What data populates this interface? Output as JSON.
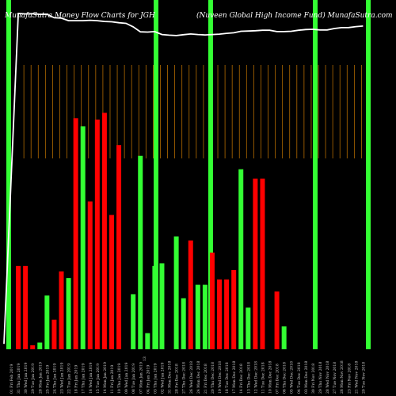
{
  "chart_data": {
    "type": "bar",
    "title": "MunafaSutra  Money Flow  Charts for JGH",
    "subtitle": "(Nuveen  Global High Income   Fund) MunafaSutra.com",
    "categories": [
      "01 Fri Feb 2019",
      "31 Thu Jan 2019",
      "30 Wed Jan 2019",
      "29 Tue Jan 2019",
      "28 Mon Jan 2019",
      "25 Fri Jan 2019",
      "24 Thu Jan 2019",
      "23 Wed Jan 2019",
      "22 Tue Jan 2019",
      "18 Fri Jan 2019",
      "17 Thu Jan 2019",
      "16 Wed Jan 2019",
      "15 Tue Jan 2019",
      "14 Mon Jan 2019",
      "11 Fri Jan 2019",
      "10 Thu Jan 2019",
      "09 Wed Jan 2019",
      "08 Tue Jan 2019",
      "07 Mon Jan 2019",
      "04 Fri Jan 2019",
      "03 Thu Jan 2019",
      "02 Wed Jan 2019",
      "31 Mon Dec 2018",
      "28 Fri Dec 2018",
      "27 Thu Dec 2018",
      "26 Wed Dec 2018",
      "24 Mon Dec 2018",
      "21 Fri Dec 2018",
      "20 Thu Dec 2018",
      "19 Wed Dec 2018",
      "18 Tue Dec 2018",
      "17 Mon Dec 2018",
      "14 Fri Dec 2018",
      "13 Thu Dec 2018",
      "12 Wed Dec 2018",
      "11 Tue Dec 2018",
      "10 Mon Dec 2018",
      "07 Fri Dec 2018",
      "06 Thu Dec 2018",
      "05 Wed Dec 2018",
      "04 Tue Dec 2018",
      "03 Mon Dec 2018",
      "30 Fri Nov 2018",
      "29 Thu Nov 2018",
      "28 Wed Nov 2018",
      "27 Tue Nov 2018",
      "26 Mon Nov 2018",
      "23 Fri Nov 2018",
      "21 Wed Nov 2018",
      "20 Tue Nov 2018"
    ],
    "tick_labels": [
      "01 Fri Feb 2019",
      "31 Thu Jan 2019",
      "30 Wed Jan 2019",
      "29 Tue Jan 2019",
      "28 Mon Jan 2019",
      "25 Fri Jan 2019",
      "24 Thu Jan 2019",
      "23 Wed Jan 2019",
      "22 Tue Jan 2019",
      "18 Fri Jan 2019",
      "17 Thu Jan 2019",
      "16 Wed Jan 2019",
      "15 Tue Jan 2019",
      "14 Mon Jan 2019",
      "11 Fri Jan 2019",
      "10 Thu Jan 2019",
      "09 Wed Jan 2019",
      "08 Tue Jan 2019",
      "07 Mon Jan 2019",
      "04 Fri Jan 2019",
      "03 Thu Jan 2019",
      "02 Wed Jan 2019",
      "31 Mon Dec 2018",
      "28 Fri Dec 2018",
      "27 Thu Dec 2018",
      "26 Wed Dec 2018",
      "24 Mon Dec 2018",
      "21 Fri Dec 2018",
      "20 Thu Dec 2018",
      "19 Wed Dec 2018",
      "18 Tue Dec 2018",
      "17 Mon Dec 2018",
      "14 Fri Dec 2018",
      "13 Thu Dec 2018",
      "12 Wed Dec 2018",
      "11 Tue Dec 2018",
      "10 Mon Dec 2018",
      "07 Fri Dec 2018",
      "06 Thu Dec 2018",
      "05 Wed Dec 2018",
      "04 Tue Dec 2018",
      "03 Mon Dec 2018",
      "30 Fri Nov 2018",
      "29 Thu Nov 2018",
      "28 Wed Nov 2018",
      "27 Tue Nov 2018",
      "26 Mon Nov 2018",
      "23 Fri Nov 2018",
      "21 Wed Nov 2018",
      "20 Tue Nov 2018"
    ],
    "mid_tick_label": "13",
    "bars": [
      {
        "value": 1,
        "color": "none"
      },
      {
        "value": 62,
        "color": "red"
      },
      {
        "value": 62,
        "color": "red"
      },
      {
        "value": 3,
        "color": "red"
      },
      {
        "value": 5,
        "color": "green"
      },
      {
        "value": 40,
        "color": "green"
      },
      {
        "value": 22,
        "color": "red"
      },
      {
        "value": 58,
        "color": "red"
      },
      {
        "value": 53,
        "color": "green"
      },
      {
        "value": 172,
        "color": "red"
      },
      {
        "value": 166,
        "color": "green"
      },
      {
        "value": 110,
        "color": "red"
      },
      {
        "value": 171,
        "color": "red"
      },
      {
        "value": 176,
        "color": "red"
      },
      {
        "value": 100,
        "color": "red"
      },
      {
        "value": 152,
        "color": "red"
      },
      {
        "value": 1,
        "color": "none"
      },
      {
        "value": 41,
        "color": "green"
      },
      {
        "value": 144,
        "color": "green"
      },
      {
        "value": 12,
        "color": "green"
      },
      {
        "value": 62,
        "color": "green"
      },
      {
        "value": 64,
        "color": "green"
      },
      {
        "value": 1,
        "color": "none"
      },
      {
        "value": 84,
        "color": "green"
      },
      {
        "value": 38,
        "color": "green"
      },
      {
        "value": 81,
        "color": "red"
      },
      {
        "value": 48,
        "color": "green"
      },
      {
        "value": 48,
        "color": "green"
      },
      {
        "value": 72,
        "color": "red"
      },
      {
        "value": 52,
        "color": "red"
      },
      {
        "value": 52,
        "color": "red"
      },
      {
        "value": 59,
        "color": "red"
      },
      {
        "value": 134,
        "color": "green"
      },
      {
        "value": 31,
        "color": "green"
      },
      {
        "value": 127,
        "color": "red"
      },
      {
        "value": 127,
        "color": "red"
      },
      {
        "value": 1,
        "color": "none"
      },
      {
        "value": 43,
        "color": "red"
      },
      {
        "value": 17,
        "color": "green"
      },
      {
        "value": 1,
        "color": "none"
      },
      {
        "value": 0,
        "color": "none"
      },
      {
        "value": 0,
        "color": "none"
      },
      {
        "value": 0,
        "color": "none"
      },
      {
        "value": 0,
        "color": "none"
      },
      {
        "value": 0,
        "color": "none"
      },
      {
        "value": 0,
        "color": "none"
      },
      {
        "value": 0,
        "color": "none"
      },
      {
        "value": 0,
        "color": "none"
      },
      {
        "value": 0,
        "color": "none"
      },
      {
        "value": 0,
        "color": "none"
      }
    ],
    "price_line": {
      "values": [
        4.0,
        250.0,
        249.6,
        249.8,
        249.3,
        249.3,
        246.8,
        246.5,
        244.6,
        244.6,
        244.6,
        244.9,
        244.6,
        244.0,
        243.8,
        243.1,
        242.6,
        240.0,
        236.3,
        236.1,
        236.5,
        234.3,
        233.8,
        233.5,
        234.2,
        234.7,
        234.3,
        234.0,
        234.3,
        234.6,
        235.2,
        235.6,
        236.7,
        236.9,
        237.1,
        237.5,
        237.5,
        236.5,
        236.5,
        236.7,
        237.5,
        238.0,
        238.2,
        237.7,
        237.7,
        238.8,
        239.4,
        239.5,
        240.2,
        240.6
      ]
    },
    "ylim": [
      0,
      260
    ],
    "colors": {
      "background": "#000000",
      "up_bar": "#33ff33",
      "down_bar": "#ff0000",
      "week_separator": "#33ff33",
      "grid_line": "#b36b00",
      "price_line": "#ffffff",
      "text": "#ffffff"
    },
    "grid": true,
    "legend": "none"
  }
}
